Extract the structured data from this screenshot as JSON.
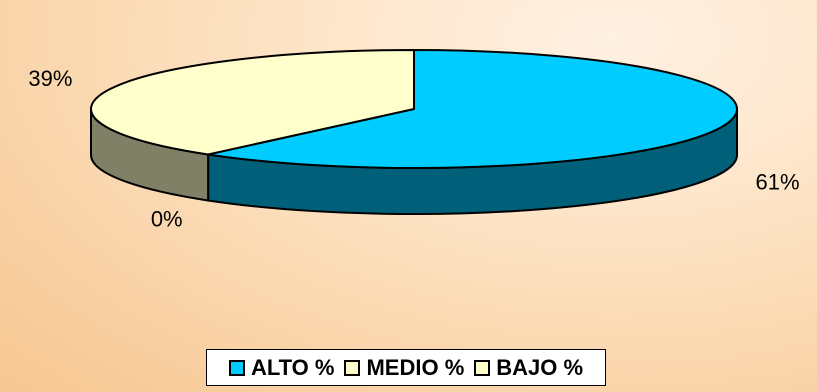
{
  "chart_data": {
    "type": "pie",
    "title": "",
    "slices": [
      {
        "label": "ALTO %",
        "value": 61,
        "display": "61%",
        "color": "#00ccff",
        "side_color": "#006079"
      },
      {
        "label": "MEDIO %",
        "value": 0,
        "display": "0%",
        "color": "#ffffcc",
        "side_color": "#808066"
      },
      {
        "label": "BAJO %",
        "value": 39,
        "display": "39%",
        "color": "#ffffcc",
        "side_color": "#808066"
      }
    ],
    "style": "3d",
    "legend_position": "bottom"
  }
}
